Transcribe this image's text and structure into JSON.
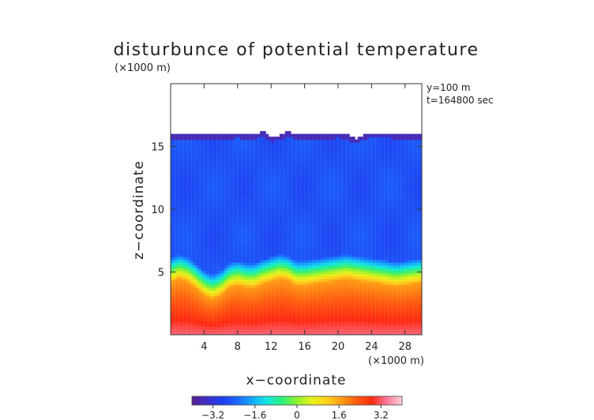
{
  "chart_data": {
    "type": "heatmap",
    "title": "disturbunce of potential temperature",
    "unit_note": "(×1000 m)",
    "x_unit_note": "(×1000 m)",
    "xlabel": "x−coordinate",
    "ylabel": "z−coordinate",
    "annotations": [
      "y=100 m",
      "t=164800 sec"
    ],
    "xlim": [
      0,
      30
    ],
    "ylim": [
      0,
      20
    ],
    "x_ticks": [
      4,
      8,
      12,
      16,
      20,
      24,
      28
    ],
    "x_tick_labels": [
      "4",
      "8",
      "12",
      "16",
      "20",
      "24",
      "28"
    ],
    "y_ticks": [
      5,
      10,
      15
    ],
    "y_tick_labels": [
      "5",
      "10",
      "15"
    ],
    "colorbar": {
      "range": [
        -4,
        4
      ],
      "ticks": [
        -3.2,
        -1.6,
        0,
        1.6,
        3.2
      ],
      "tick_labels": [
        "−3.2",
        "−1.6",
        "0",
        "1.6",
        "3.2"
      ],
      "colors": [
        "#5a1f8f",
        "#3f2fc6",
        "#1f3ff0",
        "#1a66ff",
        "#14a8ff",
        "#13e8e0",
        "#2cf07a",
        "#8cf230",
        "#e6f21c",
        "#ffd21a",
        "#ff9a14",
        "#ff5a10",
        "#ff2a12",
        "#ff7a9a",
        "#ffd0dc"
      ]
    },
    "field": {
      "top_boundary_z": [
        16.0,
        16.0,
        16.0,
        16.0,
        16.0,
        16.0,
        16.0,
        16.0,
        16.1,
        16.0,
        15.9,
        16.3,
        15.8,
        15.9,
        16.2,
        16.0,
        16.0,
        16.0,
        16.0,
        16.0,
        16.1,
        16.0,
        15.6,
        15.9,
        16.1,
        16.1,
        16.1,
        16.0,
        16.0,
        16.0,
        16.0
      ],
      "front_z": [
        5.2,
        5.5,
        5.3,
        4.8,
        4.2,
        3.9,
        4.2,
        4.8,
        5.0,
        4.8,
        4.8,
        5.1,
        5.3,
        5.5,
        5.4,
        5.0,
        5.0,
        5.1,
        5.2,
        5.3,
        5.4,
        5.5,
        5.4,
        5.3,
        5.2,
        5.1,
        5.0,
        4.9,
        5.0,
        5.1,
        5.2
      ],
      "above_value": -2.6,
      "surface_value": 3.3
    }
  }
}
